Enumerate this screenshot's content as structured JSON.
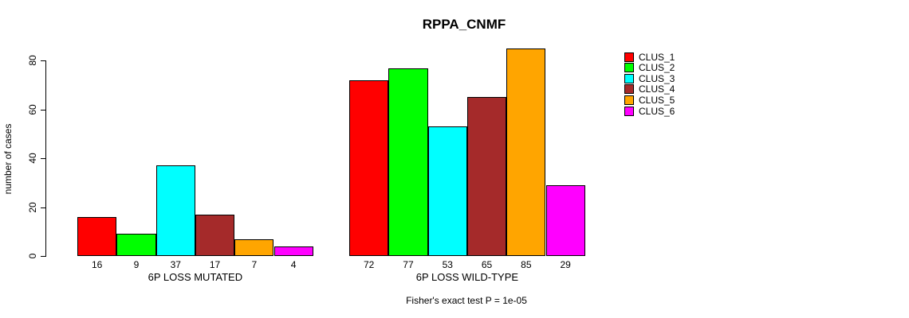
{
  "chart_data": {
    "type": "bar",
    "title": "RPPA_CNMF",
    "ylabel": "number of cases",
    "xlabel": "",
    "ylim": [
      0,
      88
    ],
    "yticks": [
      0,
      20,
      40,
      60,
      80
    ],
    "grid": false,
    "legend_position": "right",
    "categories": [
      "6P LOSS MUTATED",
      "6P LOSS WILD-TYPE"
    ],
    "series": [
      {
        "name": "CLUS_1",
        "color": "#FF0000",
        "values": [
          16,
          72
        ]
      },
      {
        "name": "CLUS_2",
        "color": "#00FF00",
        "values": [
          9,
          77
        ]
      },
      {
        "name": "CLUS_3",
        "color": "#00FFFF",
        "values": [
          37,
          53
        ]
      },
      {
        "name": "CLUS_4",
        "color": "#A52A2A",
        "values": [
          17,
          65
        ]
      },
      {
        "name": "CLUS_5",
        "color": "#FFA500",
        "values": [
          7,
          85
        ]
      },
      {
        "name": "CLUS_6",
        "color": "#FF00FF",
        "values": [
          4,
          29
        ]
      }
    ],
    "bar_value_labels_shown": true,
    "annotation": "Fisher's exact test P = 1e-05",
    "bar_outline_color": "#000000",
    "background_color": "#FFFFFF"
  }
}
